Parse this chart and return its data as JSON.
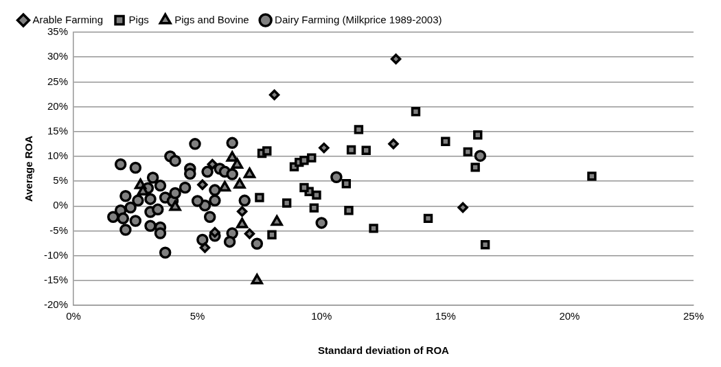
{
  "chart_data": {
    "type": "scatter",
    "xlabel": "Standard deviation of ROA",
    "ylabel": "Average ROA",
    "legend": "top",
    "grid": "y",
    "xlim": [
      0,
      25
    ],
    "xticks": [
      {
        "value": 0,
        "label": "0%"
      },
      {
        "value": 5,
        "label": "5%"
      },
      {
        "value": 10,
        "label": "10%"
      },
      {
        "value": 15,
        "label": "15%"
      },
      {
        "value": 20,
        "label": "20%"
      },
      {
        "value": 25,
        "label": "25%"
      }
    ],
    "ylim": [
      -20,
      35
    ],
    "yticks": [
      {
        "value": -20,
        "label": "-20%"
      },
      {
        "value": -15,
        "label": "-15%"
      },
      {
        "value": -10,
        "label": "-10%"
      },
      {
        "value": -5,
        "label": "-5%"
      },
      {
        "value": 0,
        "label": "0%"
      },
      {
        "value": 5,
        "label": "5%"
      },
      {
        "value": 10,
        "label": "10%"
      },
      {
        "value": 15,
        "label": "15%"
      },
      {
        "value": 20,
        "label": "20%"
      },
      {
        "value": 25,
        "label": "25%"
      },
      {
        "value": 30,
        "label": "30%"
      },
      {
        "value": 35,
        "label": "35%"
      }
    ],
    "series": [
      {
        "name": "Arable Farming",
        "color": "#808080",
        "marker": "diamond",
        "x": [
          13.0,
          8.1,
          10.1,
          12.9,
          15.7,
          5.6,
          5.2,
          6.8,
          7.1,
          5.7,
          5.3
        ],
        "values": [
          29.6,
          22.4,
          11.7,
          12.5,
          -0.3,
          8.4,
          4.3,
          -1.1,
          -5.6,
          -5.3,
          -8.4
        ]
      },
      {
        "name": "Pigs",
        "color": "#808080",
        "marker": "square",
        "x": [
          13.8,
          11.5,
          16.3,
          11.2,
          11.8,
          15.0,
          15.9,
          16.2,
          11.0,
          9.8,
          9.7,
          11.1,
          12.1,
          14.3,
          16.6,
          20.9,
          7.6,
          7.8,
          8.9,
          9.1,
          9.3,
          9.6,
          7.5,
          8.6,
          8.0,
          9.5,
          9.3
        ],
        "values": [
          19.0,
          15.4,
          14.3,
          11.3,
          11.2,
          13.0,
          10.9,
          7.8,
          4.5,
          2.2,
          -0.4,
          -0.9,
          -4.5,
          -2.5,
          -7.8,
          6.0,
          10.6,
          11.1,
          7.9,
          8.8,
          9.2,
          9.7,
          1.7,
          0.6,
          -5.8,
          2.9,
          3.7
        ]
      },
      {
        "name": "Pigs and Bovine",
        "color": "#808080",
        "marker": "triangle",
        "x": [
          6.4,
          6.6,
          7.1,
          6.7,
          6.1,
          6.8,
          8.2,
          7.4,
          2.7,
          2.8,
          4.1
        ],
        "values": [
          9.7,
          8.3,
          6.4,
          4.3,
          3.7,
          -3.7,
          -3.2,
          -15.0,
          4.2,
          2.9,
          -0.2
        ]
      },
      {
        "name": "Dairy Farming (Milkprice 1989-2003)",
        "color": "#808080",
        "marker": "circle",
        "x": [
          16.4,
          10.6,
          10.0,
          4.9,
          6.4,
          5.4,
          5.9,
          6.1,
          6.4,
          6.9,
          5.7,
          5.7,
          5.3,
          5.5,
          7.4,
          6.4,
          6.3,
          5.2,
          5.7,
          3.9,
          4.1,
          1.9,
          2.5,
          4.7,
          4.7,
          3.2,
          3.0,
          3.5,
          3.7,
          4.0,
          4.1,
          4.5,
          3.1,
          2.6,
          2.3,
          2.1,
          1.9,
          1.6,
          2.0,
          2.1,
          2.5,
          3.1,
          3.4,
          3.1,
          3.5,
          3.5,
          3.7,
          5.0
        ],
        "values": [
          10.1,
          5.8,
          -3.4,
          12.5,
          12.7,
          6.9,
          7.5,
          6.9,
          6.4,
          1.1,
          3.2,
          1.1,
          0.1,
          -2.2,
          -7.6,
          -5.5,
          -7.2,
          -6.8,
          -6.0,
          10.0,
          9.1,
          8.4,
          7.7,
          7.5,
          6.5,
          5.7,
          3.6,
          4.1,
          1.7,
          1.0,
          2.6,
          3.7,
          1.4,
          1.1,
          -0.3,
          2.0,
          -0.9,
          -2.2,
          -2.5,
          -4.8,
          -3.0,
          -1.2,
          -0.7,
          -4.0,
          -4.3,
          -5.5,
          -9.4,
          1.0
        ]
      }
    ]
  }
}
